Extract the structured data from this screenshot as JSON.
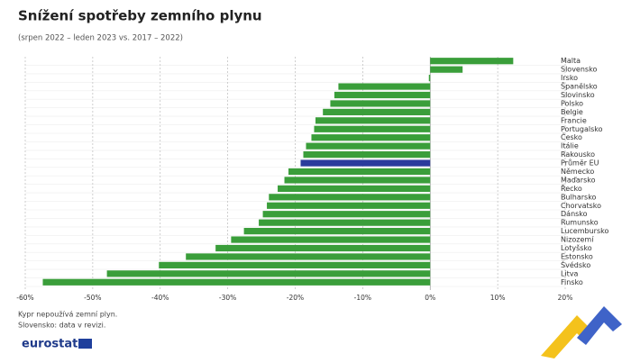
{
  "chart_data": {
    "type": "barh",
    "title": "Snížení spotřeby zemního plynu",
    "subtitle": "(srpen 2022 – leden 2023 vs. 2017 – 2022)",
    "categories": [
      "Malta",
      "Slovensko",
      "Irsko",
      "Španělsko",
      "Slovinsko",
      "Polsko",
      "Belgie",
      "Francie",
      "Portugalsko",
      "Česko",
      "Itálie",
      "Rakousko",
      "Průměr EU",
      "Německo",
      "Maďarsko",
      "Řecko",
      "Bulharsko",
      "Chorvatsko",
      "Dánsko",
      "Rumunsko",
      "Lucembursko",
      "Nizozemí",
      "Lotyšsko",
      "Estonsko",
      "Švédsko",
      "Litva",
      "Finsko"
    ],
    "values": [
      12.3,
      4.8,
      -0.2,
      -13.6,
      -14.2,
      -14.8,
      -15.9,
      -17.0,
      -17.2,
      -17.6,
      -18.4,
      -18.8,
      -19.2,
      -21.0,
      -21.6,
      -22.6,
      -23.9,
      -24.2,
      -24.8,
      -25.4,
      -27.6,
      -29.5,
      -31.8,
      -36.2,
      -40.2,
      -47.9,
      -57.4
    ],
    "colors": [
      "#3a9e3a",
      "#3a9e3a",
      "#3a9e3a",
      "#3a9e3a",
      "#3a9e3a",
      "#3a9e3a",
      "#3a9e3a",
      "#3a9e3a",
      "#3a9e3a",
      "#3a9e3a",
      "#3a9e3a",
      "#3a9e3a",
      "#2a3b9c",
      "#3a9e3a",
      "#3a9e3a",
      "#3a9e3a",
      "#3a9e3a",
      "#3a9e3a",
      "#3a9e3a",
      "#3a9e3a",
      "#3a9e3a",
      "#3a9e3a",
      "#3a9e3a",
      "#3a9e3a",
      "#3a9e3a",
      "#3a9e3a",
      "#3a9e3a"
    ],
    "xlim": [
      -60,
      20
    ],
    "xticks": [
      {
        "value": -60,
        "label": "-60%"
      },
      {
        "value": -50,
        "label": "-50%"
      },
      {
        "value": -40,
        "label": "-40%"
      },
      {
        "value": -30,
        "label": "-30%"
      },
      {
        "value": -20,
        "label": "-20%"
      },
      {
        "value": -10,
        "label": "-10%"
      },
      {
        "value": 0,
        "label": "0%"
      },
      {
        "value": 10,
        "label": "10%"
      },
      {
        "value": 20,
        "label": "20%"
      }
    ],
    "grid": true,
    "notes": [
      "Kypr nepoužívá zemní plyn.",
      "Slovensko: data v revizi."
    ],
    "source": "eurostat"
  }
}
